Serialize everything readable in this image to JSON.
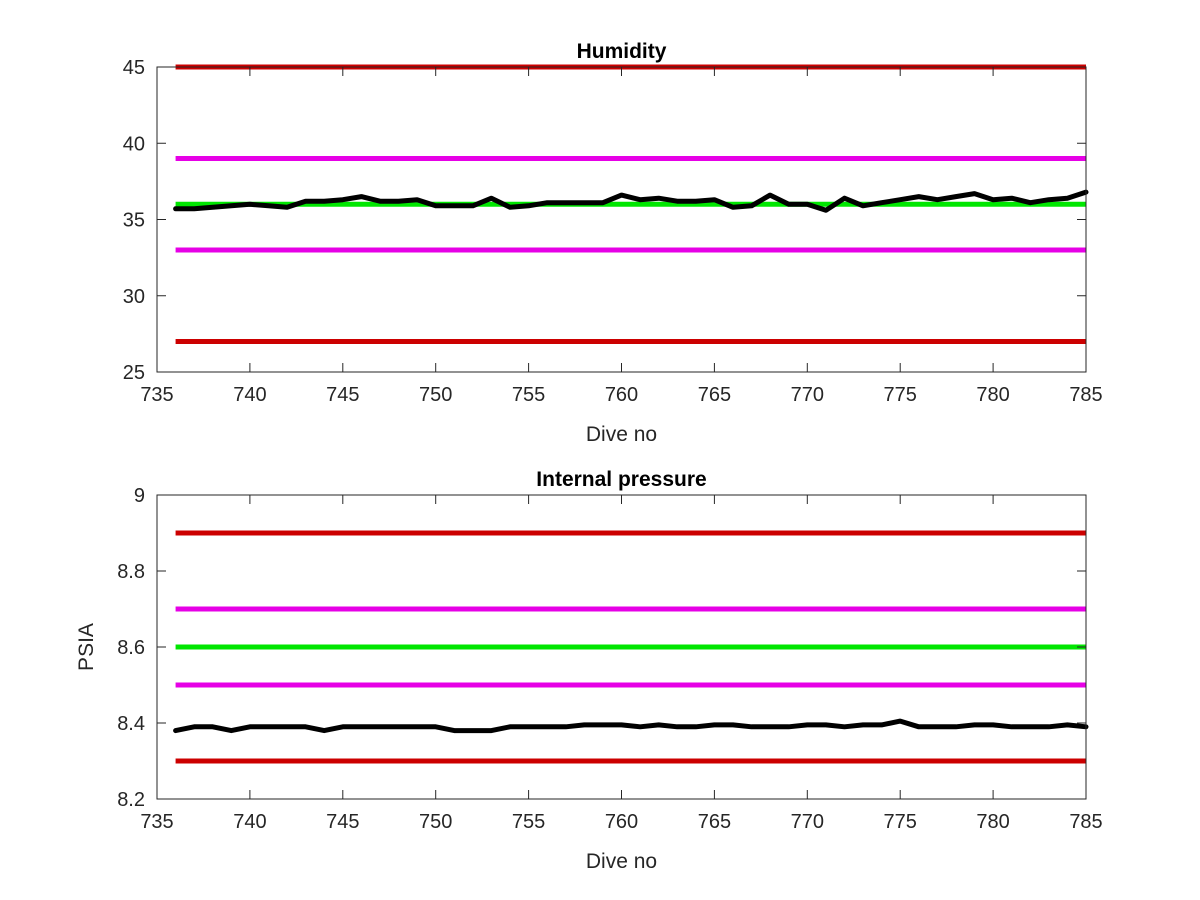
{
  "chart_data": [
    {
      "type": "line",
      "title": "Humidity",
      "xlabel": "Dive no",
      "ylabel": "",
      "xlim": [
        735,
        785
      ],
      "ylim": [
        25,
        45
      ],
      "xticks": [
        735,
        740,
        745,
        750,
        755,
        760,
        765,
        770,
        775,
        780,
        785
      ],
      "yticks": [
        25,
        30,
        35,
        40,
        45
      ],
      "grid": false,
      "legend": "none",
      "reference_lines": [
        {
          "y": 45,
          "color": "#cc0000"
        },
        {
          "y": 39,
          "color": "#e600e6"
        },
        {
          "y": 36,
          "color": "#00e600"
        },
        {
          "y": 33,
          "color": "#e600e6"
        },
        {
          "y": 27,
          "color": "#cc0000"
        }
      ],
      "series": [
        {
          "color": "#000000",
          "x": [
            736,
            737,
            738,
            739,
            740,
            741,
            742,
            743,
            744,
            745,
            746,
            747,
            748,
            749,
            750,
            751,
            752,
            753,
            754,
            755,
            756,
            757,
            758,
            759,
            760,
            761,
            762,
            763,
            764,
            765,
            766,
            767,
            768,
            769,
            770,
            771,
            772,
            773,
            774,
            775,
            776,
            777,
            778,
            779,
            780,
            781,
            782,
            783,
            784,
            785
          ],
          "y": [
            35.7,
            35.7,
            35.8,
            35.9,
            36.0,
            35.9,
            35.8,
            36.2,
            36.2,
            36.3,
            36.5,
            36.2,
            36.2,
            36.3,
            35.9,
            35.9,
            35.9,
            36.4,
            35.8,
            35.9,
            36.1,
            36.1,
            36.1,
            36.1,
            36.6,
            36.3,
            36.4,
            36.2,
            36.2,
            36.3,
            35.8,
            35.9,
            36.6,
            36.0,
            36.0,
            35.6,
            36.4,
            35.9,
            36.1,
            36.3,
            36.5,
            36.3,
            36.5,
            36.7,
            36.3,
            36.4,
            36.1,
            36.3,
            36.4,
            36.8
          ]
        }
      ]
    },
    {
      "type": "line",
      "title": "Internal pressure",
      "xlabel": "Dive no",
      "ylabel": "PSIA",
      "xlim": [
        735,
        785
      ],
      "ylim": [
        8.2,
        9
      ],
      "xticks": [
        735,
        740,
        745,
        750,
        755,
        760,
        765,
        770,
        775,
        780,
        785
      ],
      "yticks": [
        8.2,
        8.4,
        8.6,
        8.8,
        9
      ],
      "grid": false,
      "legend": "none",
      "reference_lines": [
        {
          "y": 8.9,
          "color": "#cc0000"
        },
        {
          "y": 8.7,
          "color": "#e600e6"
        },
        {
          "y": 8.6,
          "color": "#00e600"
        },
        {
          "y": 8.5,
          "color": "#e600e6"
        },
        {
          "y": 8.3,
          "color": "#cc0000"
        }
      ],
      "series": [
        {
          "color": "#000000",
          "x": [
            736,
            737,
            738,
            739,
            740,
            741,
            742,
            743,
            744,
            745,
            746,
            747,
            748,
            749,
            750,
            751,
            752,
            753,
            754,
            755,
            756,
            757,
            758,
            759,
            760,
            761,
            762,
            763,
            764,
            765,
            766,
            767,
            768,
            769,
            770,
            771,
            772,
            773,
            774,
            775,
            776,
            777,
            778,
            779,
            780,
            781,
            782,
            783,
            784,
            785
          ],
          "y": [
            8.38,
            8.39,
            8.39,
            8.38,
            8.39,
            8.39,
            8.39,
            8.39,
            8.38,
            8.39,
            8.39,
            8.39,
            8.39,
            8.39,
            8.39,
            8.38,
            8.38,
            8.38,
            8.39,
            8.39,
            8.39,
            8.39,
            8.395,
            8.395,
            8.395,
            8.39,
            8.395,
            8.39,
            8.39,
            8.395,
            8.395,
            8.39,
            8.39,
            8.39,
            8.395,
            8.395,
            8.39,
            8.395,
            8.395,
            8.405,
            8.39,
            8.39,
            8.39,
            8.395,
            8.395,
            8.39,
            8.39,
            8.39,
            8.395,
            8.39
          ]
        }
      ]
    }
  ]
}
